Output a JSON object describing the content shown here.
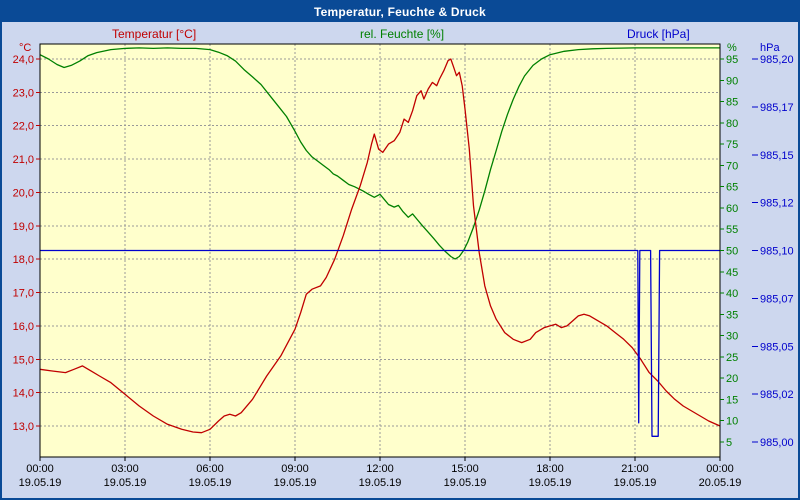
{
  "window": {
    "title": "Temperatur, Feuchte & Druck"
  },
  "chart_data": {
    "type": "line",
    "title": "Temperatur, Feuchte & Druck",
    "x_axis": {
      "range_hours": [
        0,
        24
      ],
      "tick_hours": [
        0,
        3,
        6,
        9,
        12,
        15,
        18,
        21,
        24
      ],
      "tick_labels": [
        "00:00",
        "03:00",
        "06:00",
        "09:00",
        "12:00",
        "15:00",
        "18:00",
        "21:00",
        "00:00"
      ],
      "date_labels": [
        "19.05.19",
        "19.05.19",
        "19.05.19",
        "19.05.19",
        "19.05.19",
        "19.05.19",
        "19.05.19",
        "19.05.19",
        "20.05.19"
      ]
    },
    "axes": {
      "temperature": {
        "label": "Temperatur [°C]",
        "unit": "°C",
        "color": "#c00000",
        "min": 13.0,
        "max": 24.0,
        "tick_values": [
          24,
          23,
          22,
          21,
          20,
          19,
          18,
          17,
          16,
          15,
          14,
          13
        ],
        "tick_labels": [
          "24,0",
          "23,0",
          "22,0",
          "21,0",
          "20,0",
          "19,0",
          "18,0",
          "17,0",
          "16,0",
          "15,0",
          "14,0",
          "13,0"
        ]
      },
      "humidity": {
        "label": "rel. Feuchte [%]",
        "unit": "%",
        "color": "#008000",
        "min": 5,
        "max": 95,
        "tick_values": [
          95,
          90,
          85,
          80,
          75,
          70,
          65,
          60,
          55,
          50,
          45,
          40,
          35,
          30,
          25,
          20,
          15,
          10,
          5
        ],
        "tick_labels": [
          "95",
          "90",
          "85",
          "80",
          "75",
          "70",
          "65",
          "60",
          "55",
          "50",
          "45",
          "40",
          "35",
          "30",
          "25",
          "20",
          "15",
          "10",
          "5"
        ]
      },
      "pressure": {
        "label": "Druck [hPa]",
        "unit": "hPa",
        "color": "#0000cc",
        "min": 985.0,
        "max": 985.2,
        "tick_values": [
          985.2,
          985.175,
          985.15,
          985.125,
          985.1,
          985.075,
          985.05,
          985.025,
          985.0
        ],
        "tick_labels": [
          "985,20",
          "985,17",
          "985,15",
          "985,12",
          "985,10",
          "985,07",
          "985,05",
          "985,02",
          "985,00"
        ]
      }
    },
    "series": [
      {
        "id": "humidity",
        "name": "rel. Feuchte",
        "axis": "humidity",
        "color": "#008000",
        "points": [
          [
            0,
            96
          ],
          [
            0.3,
            95
          ],
          [
            0.6,
            93.7
          ],
          [
            0.85,
            93
          ],
          [
            1.1,
            93.5
          ],
          [
            1.4,
            94.5
          ],
          [
            1.7,
            95.8
          ],
          [
            2,
            96.5
          ],
          [
            2.5,
            97.2
          ],
          [
            3,
            97.5
          ],
          [
            3.5,
            97.6
          ],
          [
            4,
            97.5
          ],
          [
            4.5,
            97.6
          ],
          [
            5,
            97.5
          ],
          [
            5.5,
            97.5
          ],
          [
            6,
            97.2
          ],
          [
            6.3,
            96.6
          ],
          [
            6.6,
            95.8
          ],
          [
            6.9,
            94.5
          ],
          [
            7.2,
            92.5
          ],
          [
            7.5,
            90.8
          ],
          [
            7.8,
            89
          ],
          [
            8.1,
            86.5
          ],
          [
            8.4,
            84
          ],
          [
            8.7,
            81.5
          ],
          [
            9,
            78
          ],
          [
            9.2,
            75.5
          ],
          [
            9.4,
            73.5
          ],
          [
            9.6,
            72
          ],
          [
            9.8,
            71
          ],
          [
            10,
            70
          ],
          [
            10.2,
            69
          ],
          [
            10.35,
            68
          ],
          [
            10.5,
            67.5
          ],
          [
            10.7,
            66.5
          ],
          [
            10.9,
            65.5
          ],
          [
            11.1,
            65
          ],
          [
            11.4,
            64
          ],
          [
            11.6,
            63.2
          ],
          [
            11.8,
            62.5
          ],
          [
            12,
            63.2
          ],
          [
            12.15,
            62
          ],
          [
            12.3,
            60.8
          ],
          [
            12.5,
            60.2
          ],
          [
            12.65,
            60.6
          ],
          [
            12.8,
            59.2
          ],
          [
            13,
            57.8
          ],
          [
            13.15,
            58.6
          ],
          [
            13.3,
            57.4
          ],
          [
            13.5,
            55.8
          ],
          [
            13.7,
            54.3
          ],
          [
            13.9,
            52.8
          ],
          [
            14.1,
            51.2
          ],
          [
            14.3,
            49.8
          ],
          [
            14.5,
            48.6
          ],
          [
            14.65,
            48
          ],
          [
            14.8,
            48.6
          ],
          [
            14.95,
            50
          ],
          [
            15.1,
            52
          ],
          [
            15.3,
            55.5
          ],
          [
            15.5,
            59.5
          ],
          [
            15.7,
            64
          ],
          [
            15.9,
            69
          ],
          [
            16.1,
            73.5
          ],
          [
            16.3,
            78
          ],
          [
            16.5,
            82
          ],
          [
            16.7,
            85.5
          ],
          [
            16.9,
            88.5
          ],
          [
            17.1,
            91
          ],
          [
            17.4,
            93.5
          ],
          [
            17.7,
            95
          ],
          [
            18,
            96
          ],
          [
            18.5,
            96.8
          ],
          [
            19,
            97.2
          ],
          [
            19.5,
            97.4
          ],
          [
            20,
            97.5
          ],
          [
            21,
            97.6
          ],
          [
            22,
            97.6
          ],
          [
            23,
            97.6
          ],
          [
            24,
            97.6
          ]
        ]
      },
      {
        "id": "temperature",
        "name": "Temperatur",
        "axis": "temperature",
        "color": "#c00000",
        "points": [
          [
            0,
            14.7
          ],
          [
            0.4,
            14.65
          ],
          [
            0.9,
            14.6
          ],
          [
            1.2,
            14.7
          ],
          [
            1.5,
            14.8
          ],
          [
            1.8,
            14.65
          ],
          [
            2.1,
            14.5
          ],
          [
            2.5,
            14.3
          ],
          [
            3,
            13.95
          ],
          [
            3.5,
            13.6
          ],
          [
            4,
            13.3
          ],
          [
            4.5,
            13.05
          ],
          [
            5,
            12.9
          ],
          [
            5.4,
            12.82
          ],
          [
            5.7,
            12.8
          ],
          [
            6,
            12.9
          ],
          [
            6.3,
            13.15
          ],
          [
            6.5,
            13.3
          ],
          [
            6.7,
            13.35
          ],
          [
            6.9,
            13.3
          ],
          [
            7.1,
            13.4
          ],
          [
            7.5,
            13.8
          ],
          [
            8,
            14.5
          ],
          [
            8.5,
            15.1
          ],
          [
            9,
            15.9
          ],
          [
            9.2,
            16.4
          ],
          [
            9.4,
            16.95
          ],
          [
            9.6,
            17.1
          ],
          [
            9.9,
            17.2
          ],
          [
            10.1,
            17.45
          ],
          [
            10.4,
            18
          ],
          [
            10.7,
            18.7
          ],
          [
            11,
            19.5
          ],
          [
            11.3,
            20.2
          ],
          [
            11.55,
            20.9
          ],
          [
            11.7,
            21.45
          ],
          [
            11.8,
            21.75
          ],
          [
            11.95,
            21.3
          ],
          [
            12.1,
            21.2
          ],
          [
            12.3,
            21.45
          ],
          [
            12.5,
            21.55
          ],
          [
            12.7,
            21.8
          ],
          [
            12.85,
            22.2
          ],
          [
            13,
            22.1
          ],
          [
            13.15,
            22.45
          ],
          [
            13.3,
            22.9
          ],
          [
            13.45,
            23.05
          ],
          [
            13.55,
            22.8
          ],
          [
            13.7,
            23.1
          ],
          [
            13.85,
            23.3
          ],
          [
            14,
            23.2
          ],
          [
            14.1,
            23.4
          ],
          [
            14.25,
            23.65
          ],
          [
            14.4,
            23.95
          ],
          [
            14.5,
            24
          ],
          [
            14.6,
            23.75
          ],
          [
            14.7,
            23.5
          ],
          [
            14.8,
            23.6
          ],
          [
            14.9,
            23.2
          ],
          [
            15,
            22.5
          ],
          [
            15.15,
            21.3
          ],
          [
            15.3,
            19.6
          ],
          [
            15.5,
            18.2
          ],
          [
            15.7,
            17.2
          ],
          [
            15.9,
            16.6
          ],
          [
            16.1,
            16.2
          ],
          [
            16.4,
            15.8
          ],
          [
            16.7,
            15.6
          ],
          [
            17,
            15.5
          ],
          [
            17.3,
            15.6
          ],
          [
            17.5,
            15.8
          ],
          [
            17.8,
            15.95
          ],
          [
            18,
            16
          ],
          [
            18.2,
            16.05
          ],
          [
            18.4,
            15.95
          ],
          [
            18.6,
            16
          ],
          [
            18.8,
            16.15
          ],
          [
            19,
            16.3
          ],
          [
            19.2,
            16.35
          ],
          [
            19.4,
            16.3
          ],
          [
            19.7,
            16.15
          ],
          [
            20,
            16
          ],
          [
            20.3,
            15.8
          ],
          [
            20.6,
            15.6
          ],
          [
            20.9,
            15.35
          ],
          [
            21.2,
            15
          ],
          [
            21.5,
            14.6
          ],
          [
            21.8,
            14.35
          ],
          [
            22.1,
            14.05
          ],
          [
            22.4,
            13.8
          ],
          [
            22.7,
            13.6
          ],
          [
            23,
            13.45
          ],
          [
            23.3,
            13.3
          ],
          [
            23.6,
            13.15
          ],
          [
            24,
            13
          ]
        ]
      },
      {
        "id": "pressure",
        "name": "Druck",
        "axis": "pressure",
        "color": "#0000cc",
        "points": [
          [
            0,
            985.1
          ],
          [
            21.1,
            985.1
          ],
          [
            21.13,
            985.01
          ],
          [
            21.17,
            985.1
          ],
          [
            21.55,
            985.1
          ],
          [
            21.6,
            985.003
          ],
          [
            21.82,
            985.003
          ],
          [
            21.87,
            985.1
          ],
          [
            24,
            985.1
          ]
        ]
      }
    ],
    "plot": {
      "background": "#ffffcc",
      "grid_color": "#999999",
      "frame_color": "#000000",
      "outer_background": "#cdd7ee",
      "time_label_color": "#000000"
    }
  }
}
